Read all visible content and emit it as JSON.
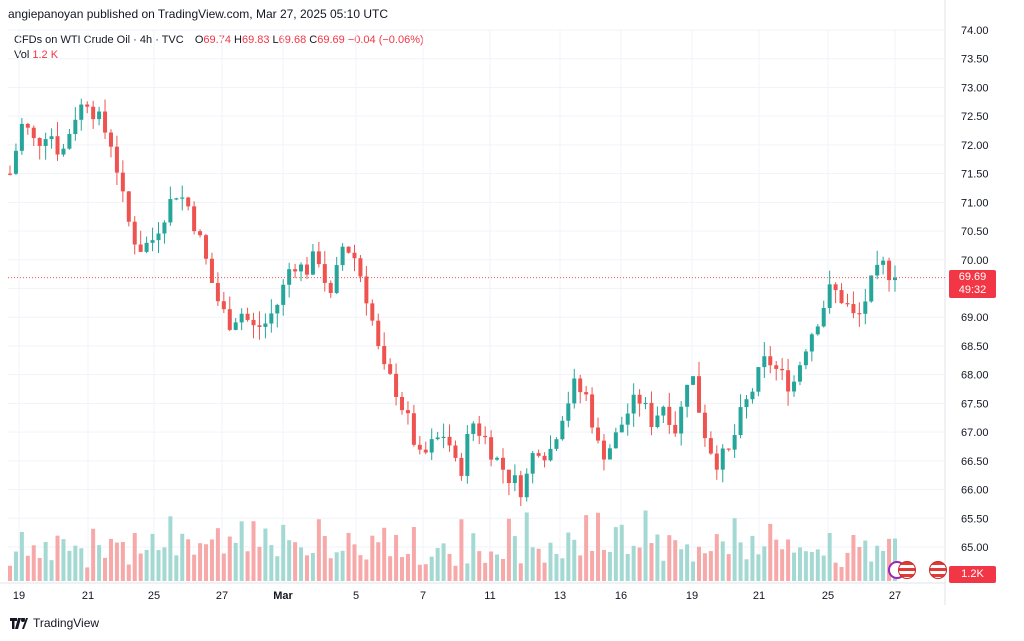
{
  "publisher": "angiepanoyan published on TradingView.com, Mar 27, 2025 05:10 UTC",
  "legend": {
    "symbol": "CFDs on WTI Crude Oil · 4h · TVC",
    "open_label": "O",
    "open": "69.74",
    "high_label": "H",
    "high": "69.83",
    "low_label": "L",
    "low": "69.68",
    "close_label": "C",
    "close": "69.69",
    "change": "−0.04 (−0.06%)",
    "vol_label": "Vol",
    "vol": "1.2 K"
  },
  "price_tag": {
    "price": "69.69",
    "countdown": "49:32"
  },
  "volume_tag": "1.2K",
  "footer": "TradingView",
  "colors": {
    "up": "#26a69a",
    "down": "#ef5350",
    "up_vol": "#a4d9d3",
    "down_vol": "#f7a8a8",
    "grid": "#f0f3fa"
  },
  "chart_data": {
    "type": "candlestick",
    "title": "CFDs on WTI Crude Oil · 4h · TVC",
    "y_ticks": [
      "74.00",
      "73.50",
      "73.00",
      "72.50",
      "72.00",
      "71.50",
      "71.00",
      "70.50",
      "70.00",
      "69.50",
      "69.00",
      "68.50",
      "68.00",
      "67.50",
      "67.00",
      "66.50",
      "66.00",
      "65.50",
      "65.00"
    ],
    "ylim": [
      64.75,
      74.0
    ],
    "x_ticks": [
      "19",
      "21",
      "25",
      "27",
      "Mar",
      "5",
      "7",
      "11",
      "13",
      "16",
      "19",
      "21",
      "25",
      "27"
    ],
    "last_price": 69.69,
    "close_path": [
      71.5,
      72.4,
      72.0,
      72.3,
      71.8,
      72.5,
      72.8,
      72.4,
      72.0,
      70.8,
      70.2,
      70.3,
      70.8,
      71.2,
      70.9,
      70.2,
      69.4,
      68.9,
      69.1,
      68.8,
      68.9,
      69.3,
      70.0,
      69.8,
      70.1,
      69.3,
      70.3,
      70.0,
      69.2,
      68.1,
      67.8,
      67.2,
      66.5,
      66.8,
      67.0,
      66.2,
      67.2,
      66.9,
      66.5,
      66.2,
      66.0,
      66.8,
      66.6,
      67.3,
      67.8,
      67.6,
      66.6,
      66.8,
      67.3,
      67.6,
      67.2,
      67.5,
      67.0,
      68.2,
      67.1,
      66.5,
      66.6,
      67.3,
      67.8,
      68.3,
      68.0,
      67.8,
      68.5,
      69.0,
      69.5,
      69.3,
      68.9,
      69.5,
      69.9,
      69.69
    ],
    "volume_scale": [
      0.3,
      0.4,
      0.7,
      0.5,
      0.6,
      0.3,
      0.8,
      0.4,
      0.9,
      0.6,
      0.4,
      0.7,
      0.5,
      0.3,
      0.8,
      0.6,
      0.4,
      0.9,
      0.5,
      0.6,
      0.3,
      0.7,
      0.5,
      0.4,
      0.8,
      0.6,
      0.5,
      0.9,
      0.6,
      1.0,
      0.7,
      0.5,
      0.9,
      0.8,
      0.6,
      0.7,
      0.5,
      1.0,
      0.6,
      0.8,
      0.4,
      0.9,
      0.6,
      0.7,
      0.5,
      0.4,
      0.8,
      0.6,
      0.5,
      0.7,
      0.6,
      0.5,
      0.9,
      0.8,
      0.4,
      0.6,
      0.5,
      0.7,
      0.8,
      0.6,
      0.5,
      0.9,
      0.6,
      0.7,
      0.5,
      0.6,
      0.5,
      0.4,
      0.8,
      0.3
    ]
  }
}
